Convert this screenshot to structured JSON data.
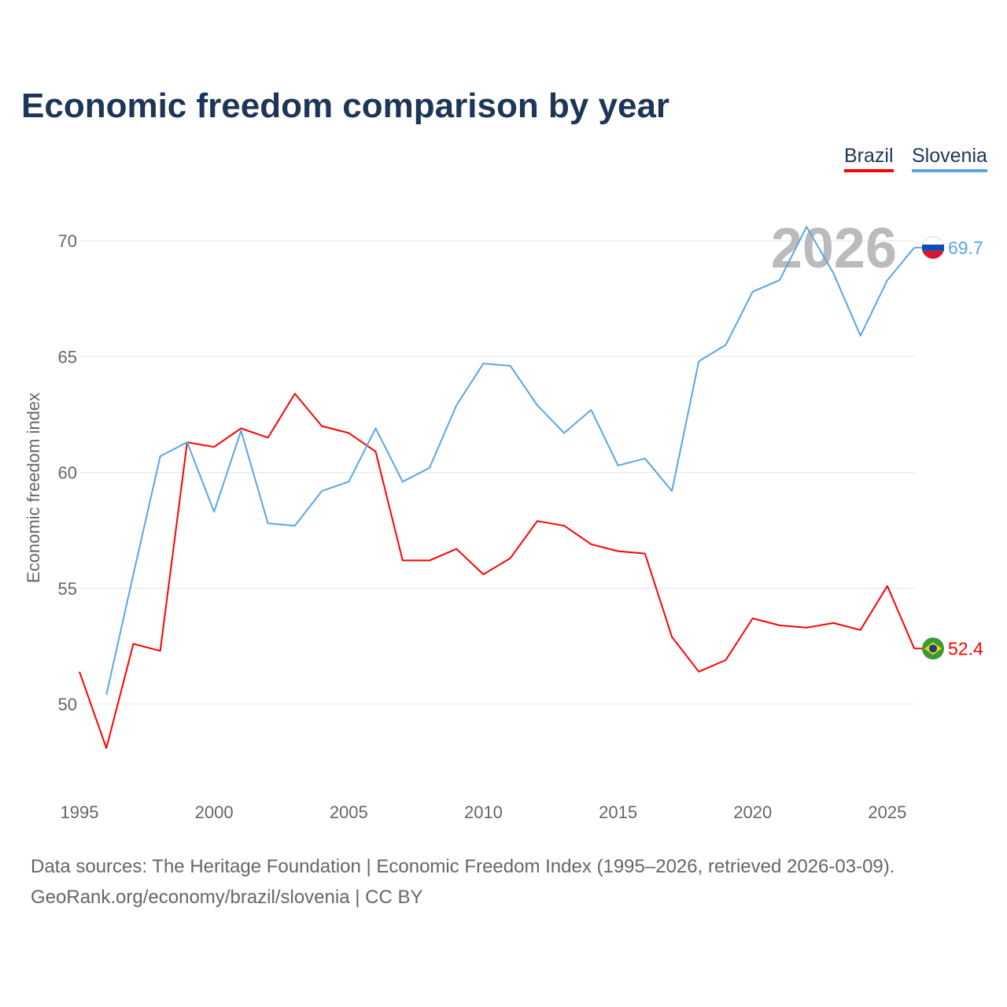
{
  "chart_data": {
    "type": "line",
    "title": "Economic freedom comparison by year",
    "xlabel": "",
    "ylabel": "Economic freedom index",
    "xlim": [
      1995,
      2026
    ],
    "ylim": [
      46.5,
      72
    ],
    "yticks": [
      50,
      55,
      60,
      65,
      70
    ],
    "xticks": [
      1995,
      2000,
      2005,
      2010,
      2015,
      2020,
      2025
    ],
    "grid": true,
    "legend_position": "top-right",
    "year_label": "2026",
    "series": [
      {
        "name": "Brazil",
        "color": "#ff0000",
        "end_label": "52.4",
        "x": [
          1995,
          1996,
          1997,
          1998,
          1999,
          2000,
          2001,
          2002,
          2003,
          2004,
          2005,
          2006,
          2007,
          2008,
          2009,
          2010,
          2011,
          2012,
          2013,
          2014,
          2015,
          2016,
          2017,
          2018,
          2019,
          2020,
          2021,
          2022,
          2023,
          2024,
          2025,
          2026
        ],
        "values": [
          51.4,
          48.1,
          52.6,
          52.3,
          61.3,
          61.1,
          61.9,
          61.5,
          63.4,
          62.0,
          61.7,
          60.9,
          56.2,
          56.2,
          56.7,
          55.6,
          56.3,
          57.9,
          57.7,
          56.9,
          56.6,
          56.5,
          52.9,
          51.4,
          51.9,
          53.7,
          53.4,
          53.3,
          53.5,
          53.2,
          55.1,
          52.4
        ]
      },
      {
        "name": "Slovenia",
        "color": "#5aa5e8",
        "end_label": "69.7",
        "x": [
          1996,
          1997,
          1998,
          1999,
          2000,
          2001,
          2002,
          2003,
          2004,
          2005,
          2006,
          2007,
          2008,
          2009,
          2010,
          2011,
          2012,
          2013,
          2014,
          2015,
          2016,
          2017,
          2018,
          2019,
          2020,
          2021,
          2022,
          2023,
          2024,
          2025,
          2026
        ],
        "values": [
          50.4,
          55.6,
          60.7,
          61.3,
          58.3,
          61.8,
          57.8,
          57.7,
          59.2,
          59.6,
          61.9,
          59.6,
          60.2,
          62.9,
          64.7,
          64.6,
          62.9,
          61.7,
          62.7,
          60.3,
          60.6,
          59.2,
          64.8,
          65.5,
          67.8,
          68.3,
          70.6,
          68.6,
          65.9,
          68.3,
          69.7
        ]
      }
    ]
  },
  "footer": {
    "line1": "Data sources: The Heritage Foundation | Economic Freedom Index (1995–2026, retrieved 2026-03-09).",
    "line2": "GeoRank.org/economy/brazil/slovenia | CC BY"
  }
}
